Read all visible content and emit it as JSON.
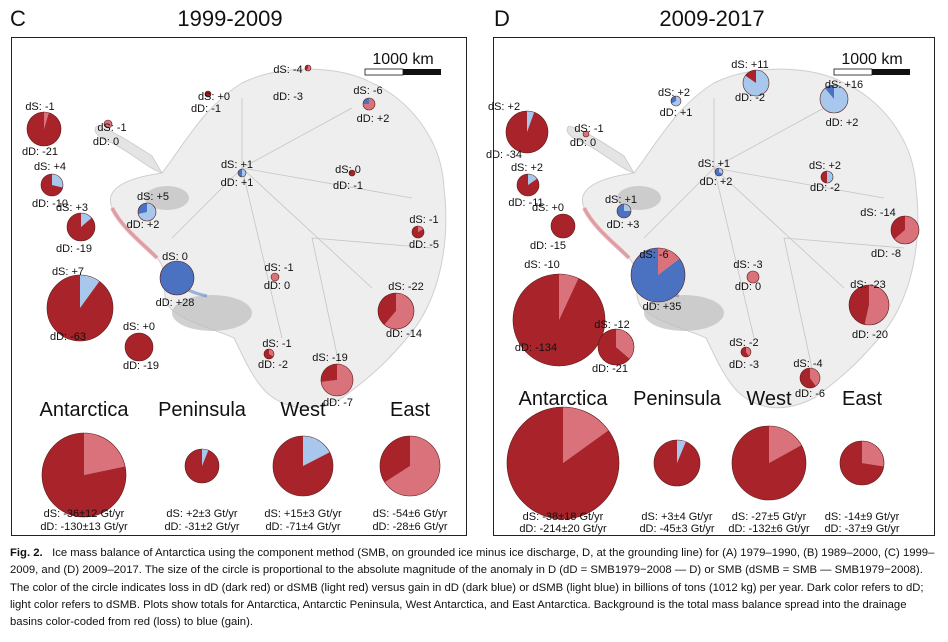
{
  "panels": [
    {
      "letter": "C",
      "title": "1999-2009",
      "scale_label": "1000 km",
      "basins": [
        {
          "ds": "dS: -1",
          "dd": "dD: -21",
          "ds_val": -1,
          "dd_val": -21
        },
        {
          "ds": "dS: -1",
          "dd": "dD: 0",
          "ds_val": -1,
          "dd_val": 0
        },
        {
          "ds": "dS: +4",
          "dd": "dD: -10",
          "ds_val": 4,
          "dd_val": -10
        },
        {
          "ds": "dS: +3",
          "dd": "dD: -19",
          "ds_val": 3,
          "dd_val": -19
        },
        {
          "ds": "dS: +7",
          "dd": "dD: -63",
          "ds_val": 7,
          "dd_val": -63
        },
        {
          "ds": "dS: +0",
          "dd": "dD: -19",
          "ds_val": 0,
          "dd_val": -19
        },
        {
          "ds": "dS: +5",
          "dd": "dD: +2",
          "ds_val": 5,
          "dd_val": 2
        },
        {
          "ds": "dS: 0",
          "dd": "dD: +28",
          "ds_val": 0,
          "dd_val": 28
        },
        {
          "ds": "dS: +0",
          "dd": "dD: -1",
          "ds_val": 0,
          "dd_val": -1
        },
        {
          "ds": "dS: -4",
          "dd": "dD: -3",
          "ds_val": -4,
          "dd_val": -3
        },
        {
          "ds": "dS: -6",
          "dd": "dD: +2",
          "ds_val": -6,
          "dd_val": 2
        },
        {
          "ds": "dS: +1",
          "dd": "dD: +1",
          "ds_val": 1,
          "dd_val": 1
        },
        {
          "ds": "dS: 0",
          "dd": "dD: -1",
          "ds_val": 0,
          "dd_val": -1
        },
        {
          "ds": "dS: -1",
          "dd": "dD: -5",
          "ds_val": -1,
          "dd_val": -5
        },
        {
          "ds": "dS: -1",
          "dd": "dD: 0",
          "ds_val": -1,
          "dd_val": 0
        },
        {
          "ds": "dS: -22",
          "dd": "dD: -14",
          "ds_val": -22,
          "dd_val": -14
        },
        {
          "ds": "dS: -1",
          "dd": "dD: -2",
          "ds_val": -1,
          "dd_val": -2
        },
        {
          "ds": "dS: -19",
          "dd": "dD: -7",
          "ds_val": -19,
          "dd_val": -7
        }
      ],
      "totals": [
        {
          "name": "Antarctica",
          "ds": "dS: -36±12 Gt/yr",
          "dd": "dD: -130±13 Gt/yr",
          "ds_val": -36,
          "dd_val": -130
        },
        {
          "name": "Peninsula",
          "ds": "dS: +2±3 Gt/yr",
          "dd": "dD: -31±2 Gt/yr",
          "ds_val": 2,
          "dd_val": -31
        },
        {
          "name": "West",
          "ds": "dS: +15±3 Gt/yr",
          "dd": "dD: -71±4 Gt/yr",
          "ds_val": 15,
          "dd_val": -71
        },
        {
          "name": "East",
          "ds": "dS: -54±6 Gt/yr",
          "dd": "dD: -28±6 Gt/yr",
          "ds_val": -54,
          "dd_val": -28
        }
      ]
    },
    {
      "letter": "D",
      "title": "2009-2017",
      "scale_label": "1000 km",
      "basins": [
        {
          "ds": "dS: +2",
          "dd": "dD: -34",
          "ds_val": 2,
          "dd_val": -34
        },
        {
          "ds": "dS: -1",
          "dd": "dD: 0",
          "ds_val": -1,
          "dd_val": 0
        },
        {
          "ds": "dS: +2",
          "dd": "dD: -11",
          "ds_val": 2,
          "dd_val": -11
        },
        {
          "ds": "dS: +0",
          "dd": "dD: -15",
          "ds_val": 0,
          "dd_val": -15
        },
        {
          "ds": "dS: -10",
          "dd": "dD: -134",
          "ds_val": -10,
          "dd_val": -134
        },
        {
          "ds": "dS: -12",
          "dd": "dD: -21",
          "ds_val": -12,
          "dd_val": -21
        },
        {
          "ds": "dS: +1",
          "dd": "dD: +3",
          "ds_val": 1,
          "dd_val": 3
        },
        {
          "ds": "dS: -6",
          "dd": "dD: +35",
          "ds_val": -6,
          "dd_val": 35
        },
        {
          "ds": "dS: +2",
          "dd": "dD: +1",
          "ds_val": 2,
          "dd_val": 1
        },
        {
          "ds": "dS: +11",
          "dd": "dD: -2",
          "ds_val": 11,
          "dd_val": -2
        },
        {
          "ds": "dS: +16",
          "dd": "dD: +2",
          "ds_val": 16,
          "dd_val": 2
        },
        {
          "ds": "dS: +1",
          "dd": "dD: +2",
          "ds_val": 1,
          "dd_val": 2
        },
        {
          "ds": "dS: +2",
          "dd": "dD: -2",
          "ds_val": 2,
          "dd_val": -2
        },
        {
          "ds": "dS: -14",
          "dd": "dD: -8",
          "ds_val": -14,
          "dd_val": -8
        },
        {
          "ds": "dS: -3",
          "dd": "dD: 0",
          "ds_val": -3,
          "dd_val": 0
        },
        {
          "ds": "dS: -23",
          "dd": "dD: -20",
          "ds_val": -23,
          "dd_val": -20
        },
        {
          "ds": "dS: -2",
          "dd": "dD: -3",
          "ds_val": -2,
          "dd_val": -3
        },
        {
          "ds": "dS: -4",
          "dd": "dD: -6",
          "ds_val": -4,
          "dd_val": -6
        }
      ],
      "totals": [
        {
          "name": "Antarctica",
          "ds": "dS: -38±18 Gt/yr",
          "dd": "dD: -214±20 Gt/yr",
          "ds_val": -38,
          "dd_val": -214
        },
        {
          "name": "Peninsula",
          "ds": "dS: +3±4 Gt/yr",
          "dd": "dD: -45±3 Gt/yr",
          "ds_val": 3,
          "dd_val": -45
        },
        {
          "name": "West",
          "ds": "dS: -27±5 Gt/yr",
          "dd": "dD: -132±6 Gt/yr",
          "ds_val": -27,
          "dd_val": -132
        },
        {
          "name": "East",
          "ds": "dS: -14±9 Gt/yr",
          "dd": "dD: -37±9 Gt/yr",
          "ds_val": -14,
          "dd_val": -37
        }
      ]
    }
  ],
  "colors": {
    "dd_loss": "#a8242a",
    "ds_loss": "#d9727a",
    "dd_gain": "#4a72c0",
    "ds_gain": "#a7c8ec"
  },
  "caption": {
    "label": "Fig. 2.",
    "text": "Ice mass balance of Antarctica using the component method (SMB, on grounded ice minus ice discharge, D, at the grounding line) for (A) 1979–1990, (B) 1989–2000, (C) 1999–2009, and (D) 2009–2017. The size of the circle is proportional to the absolute magnitude of the anomaly in D (dD = SMB1979−2008 — D) or SMB (dSMB = SMB — SMB1979−2008). The color of the circle indicates loss in dD (dark red) or dSMB (light red) versus gain in dD (dark blue) or dSMB (light blue) in billions of tons (1012 kg) per year. Dark color refers to dD; light color refers to dSMB. Plots show totals for Antarctica, Antarctic Peninsula, West Antarctica, and East Antarctica. Background is the total mass balance spread into the drainage basins color-coded from red (loss) to blue (gain)."
  }
}
